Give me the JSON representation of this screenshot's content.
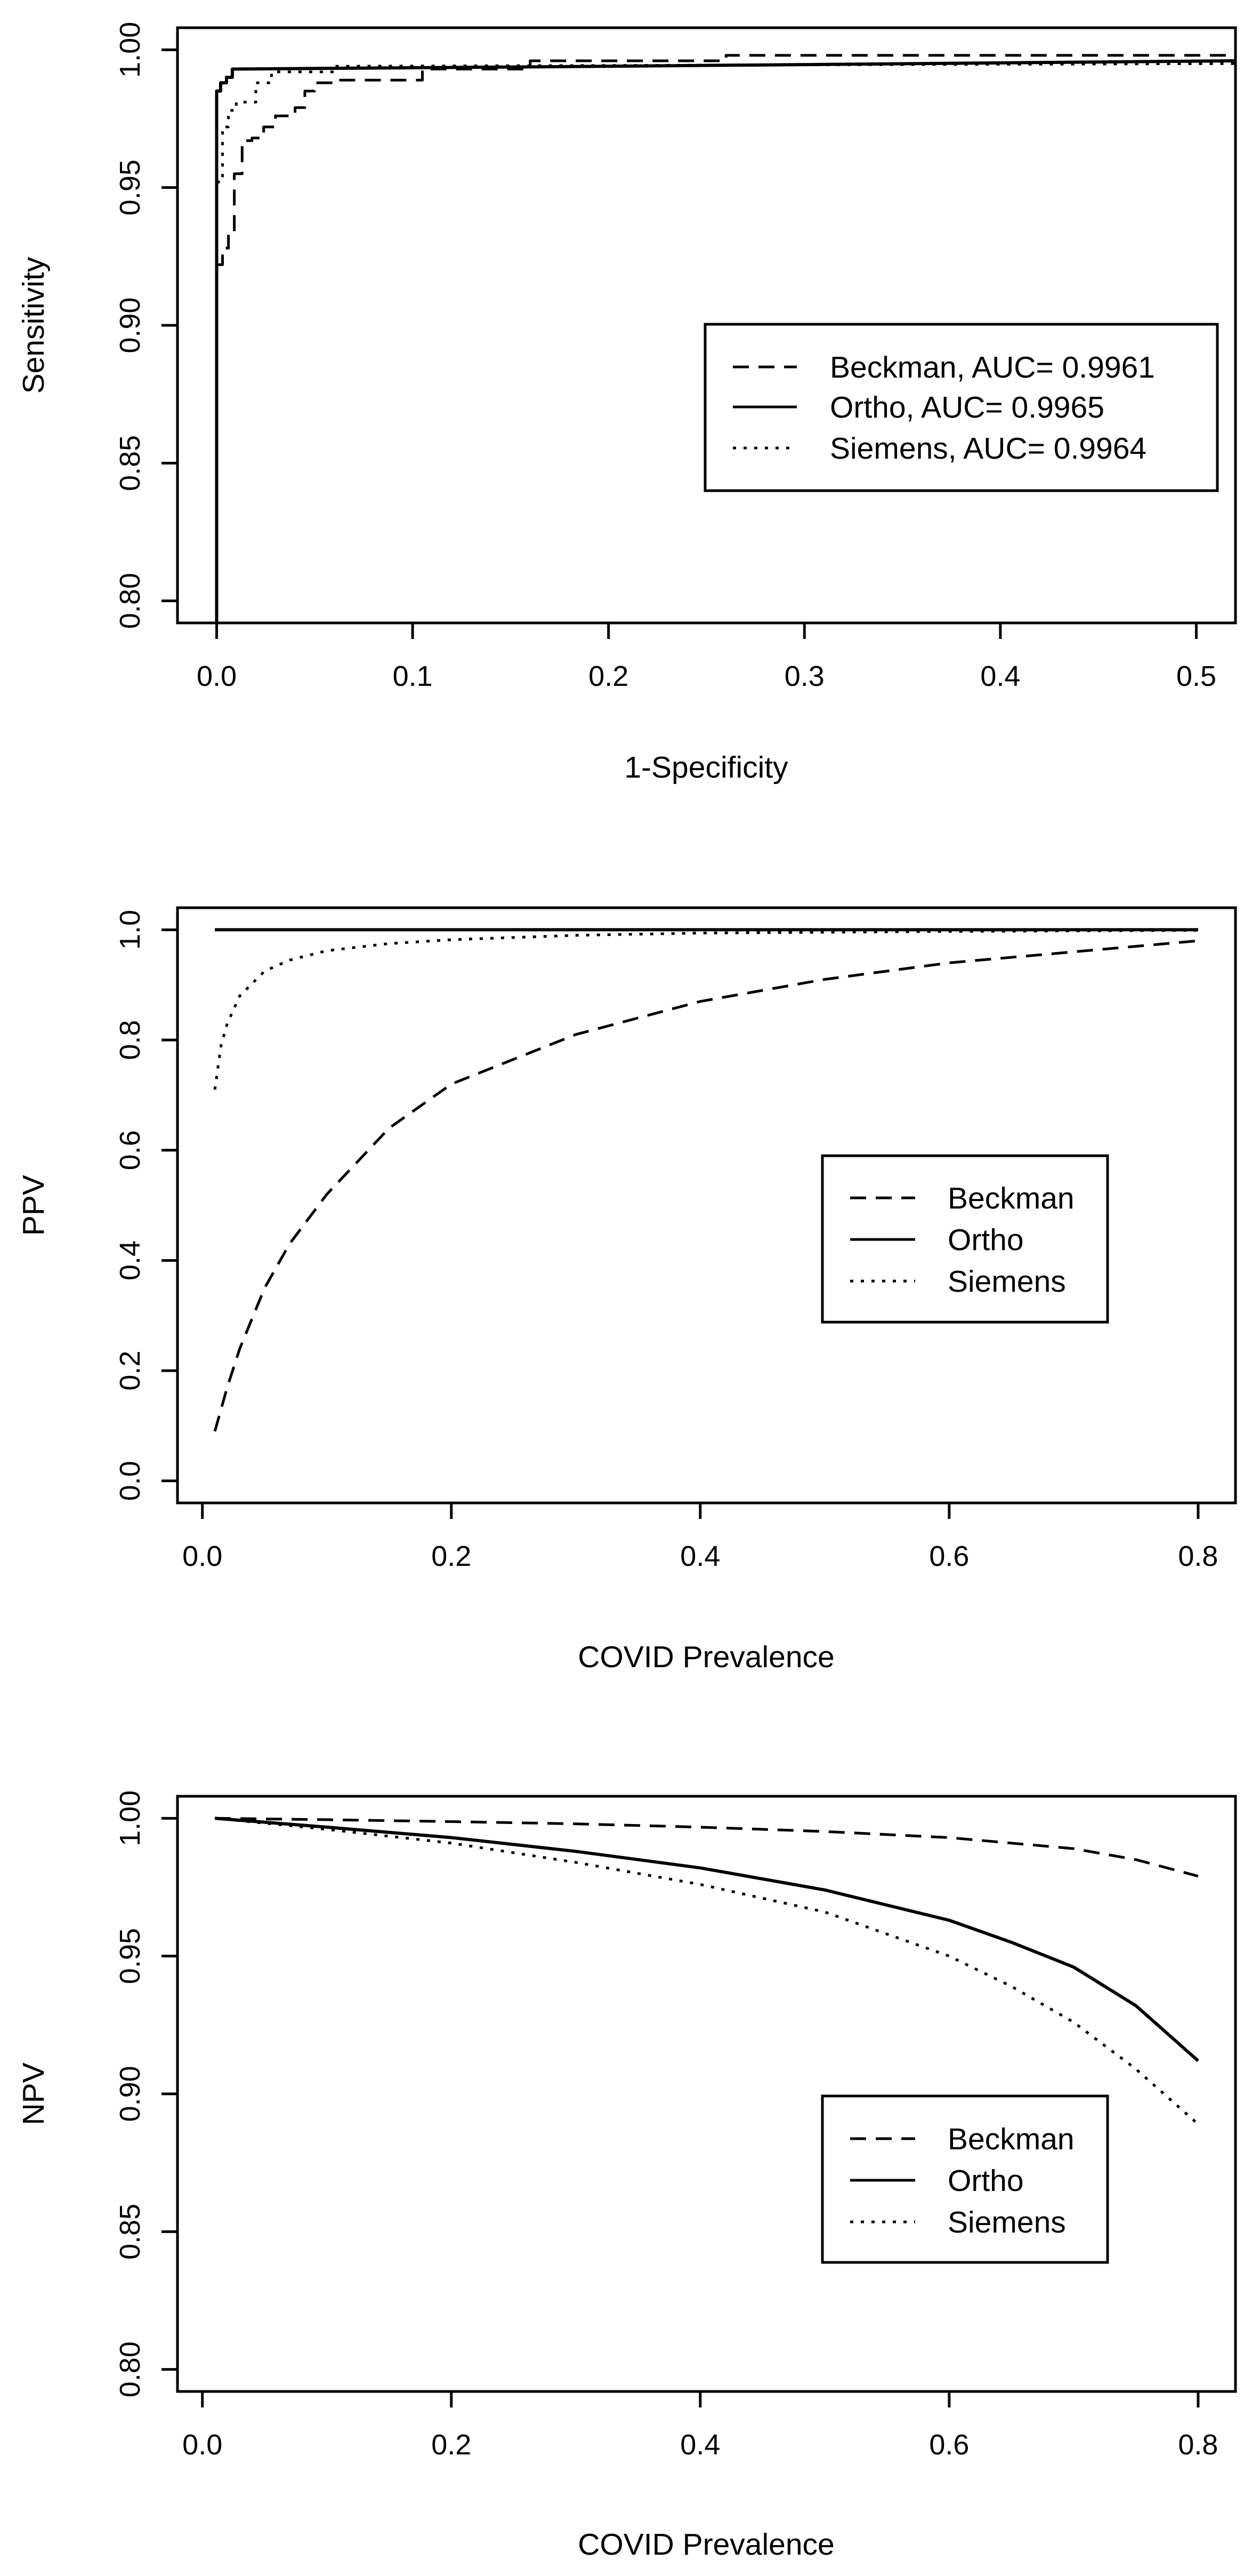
{
  "chart_data": [
    {
      "type": "line",
      "subtype": "roc",
      "title": "",
      "xlabel": "1-Specificity",
      "ylabel": "Sensitivity",
      "xlim": [
        -0.02,
        0.52
      ],
      "ylim": [
        0.792,
        1.008
      ],
      "xticks": [
        0.0,
        0.1,
        0.2,
        0.3,
        0.4,
        0.5
      ],
      "xtick_labels": [
        "0.0",
        "0.1",
        "0.2",
        "0.3",
        "0.4",
        "0.5"
      ],
      "yticks": [
        0.8,
        0.85,
        0.9,
        0.95,
        1.0
      ],
      "ytick_labels": [
        "0.80",
        "0.85",
        "0.90",
        "0.95",
        "1.00"
      ],
      "legend_position": "right",
      "series": [
        {
          "name": "Beckman, AUC= 0.9961",
          "dash": "dashed",
          "x": [
            0.0,
            0.003,
            0.003,
            0.006,
            0.006,
            0.009,
            0.009,
            0.013,
            0.013,
            0.018,
            0.018,
            0.024,
            0.024,
            0.03,
            0.03,
            0.04,
            0.04,
            0.045,
            0.045,
            0.05,
            0.05,
            0.06,
            0.06,
            0.105,
            0.105,
            0.16,
            0.16,
            0.26,
            0.26,
            0.52
          ],
          "y": [
            0.922,
            0.922,
            0.928,
            0.928,
            0.933,
            0.933,
            0.955,
            0.955,
            0.967,
            0.967,
            0.968,
            0.968,
            0.972,
            0.972,
            0.976,
            0.976,
            0.979,
            0.979,
            0.985,
            0.985,
            0.988,
            0.988,
            0.989,
            0.989,
            0.993,
            0.993,
            0.996,
            0.996,
            0.998,
            0.998
          ]
        },
        {
          "name": "Ortho, AUC= 0.9965",
          "dash": "solid",
          "x": [
            0.0,
            0.0,
            0.002,
            0.002,
            0.005,
            0.005,
            0.008,
            0.008,
            0.2,
            0.52
          ],
          "y": [
            0.792,
            0.985,
            0.985,
            0.988,
            0.988,
            0.99,
            0.99,
            0.993,
            0.994,
            0.996
          ]
        },
        {
          "name": "Siemens, AUC= 0.9964",
          "dash": "dotted",
          "x": [
            0.0,
            0.003,
            0.003,
            0.006,
            0.006,
            0.01,
            0.01,
            0.02,
            0.02,
            0.028,
            0.028,
            0.06,
            0.06,
            0.52
          ],
          "y": [
            0.952,
            0.952,
            0.972,
            0.972,
            0.978,
            0.978,
            0.981,
            0.981,
            0.988,
            0.988,
            0.992,
            0.992,
            0.994,
            0.995
          ]
        }
      ]
    },
    {
      "type": "line",
      "title": "",
      "xlabel": "COVID Prevalence",
      "ylabel": "PPV",
      "xlim": [
        -0.02,
        0.83
      ],
      "ylim": [
        -0.04,
        1.04
      ],
      "xticks": [
        0.0,
        0.2,
        0.4,
        0.6,
        0.8
      ],
      "xtick_labels": [
        "0.0",
        "0.2",
        "0.4",
        "0.6",
        "0.8"
      ],
      "yticks": [
        0.0,
        0.2,
        0.4,
        0.6,
        0.8,
        1.0
      ],
      "ytick_labels": [
        "0.0",
        "0.2",
        "0.4",
        "0.6",
        "0.8",
        "1.0"
      ],
      "legend_position": "right",
      "series": [
        {
          "name": "Beckman",
          "dash": "dashed",
          "x": [
            0.01,
            0.02,
            0.03,
            0.05,
            0.07,
            0.1,
            0.15,
            0.2,
            0.3,
            0.4,
            0.5,
            0.6,
            0.7,
            0.8
          ],
          "y": [
            0.09,
            0.17,
            0.24,
            0.35,
            0.43,
            0.52,
            0.64,
            0.72,
            0.81,
            0.87,
            0.91,
            0.94,
            0.96,
            0.98
          ]
        },
        {
          "name": "Ortho",
          "dash": "solid",
          "x": [
            0.01,
            0.2,
            0.4,
            0.6,
            0.8
          ],
          "y": [
            1.0,
            1.0,
            1.0,
            1.0,
            1.0
          ]
        },
        {
          "name": "Siemens",
          "dash": "dotted",
          "x": [
            0.01,
            0.015,
            0.02,
            0.03,
            0.05,
            0.07,
            0.1,
            0.15,
            0.2,
            0.3,
            0.4,
            0.6,
            0.8
          ],
          "y": [
            0.71,
            0.79,
            0.83,
            0.88,
            0.925,
            0.945,
            0.962,
            0.975,
            0.982,
            0.99,
            0.994,
            0.997,
            0.999
          ]
        }
      ]
    },
    {
      "type": "line",
      "title": "",
      "xlabel": "COVID Prevalence",
      "ylabel": "NPV",
      "xlim": [
        -0.02,
        0.83
      ],
      "ylim": [
        0.792,
        1.008
      ],
      "xticks": [
        0.0,
        0.2,
        0.4,
        0.6,
        0.8
      ],
      "xtick_labels": [
        "0.0",
        "0.2",
        "0.4",
        "0.6",
        "0.8"
      ],
      "yticks": [
        0.8,
        0.85,
        0.9,
        0.95,
        1.0
      ],
      "ytick_labels": [
        "0.80",
        "0.85",
        "0.90",
        "0.95",
        "1.00"
      ],
      "legend_position": "right",
      "series": [
        {
          "name": "Beckman",
          "dash": "dashed",
          "x": [
            0.01,
            0.1,
            0.2,
            0.3,
            0.4,
            0.5,
            0.6,
            0.7,
            0.75,
            0.8
          ],
          "y": [
            1.0,
            0.9995,
            0.9988,
            0.998,
            0.9968,
            0.9952,
            0.993,
            0.989,
            0.985,
            0.979
          ]
        },
        {
          "name": "Ortho",
          "dash": "solid",
          "x": [
            0.01,
            0.1,
            0.2,
            0.3,
            0.4,
            0.5,
            0.6,
            0.65,
            0.7,
            0.75,
            0.8
          ],
          "y": [
            1.0,
            0.9968,
            0.993,
            0.988,
            0.982,
            0.974,
            0.963,
            0.955,
            0.946,
            0.932,
            0.912
          ]
        },
        {
          "name": "Siemens",
          "dash": "dotted",
          "x": [
            0.01,
            0.1,
            0.2,
            0.3,
            0.4,
            0.5,
            0.6,
            0.65,
            0.7,
            0.75,
            0.8
          ],
          "y": [
            1.0,
            0.996,
            0.991,
            0.984,
            0.976,
            0.966,
            0.95,
            0.939,
            0.926,
            0.909,
            0.889
          ]
        }
      ]
    }
  ]
}
